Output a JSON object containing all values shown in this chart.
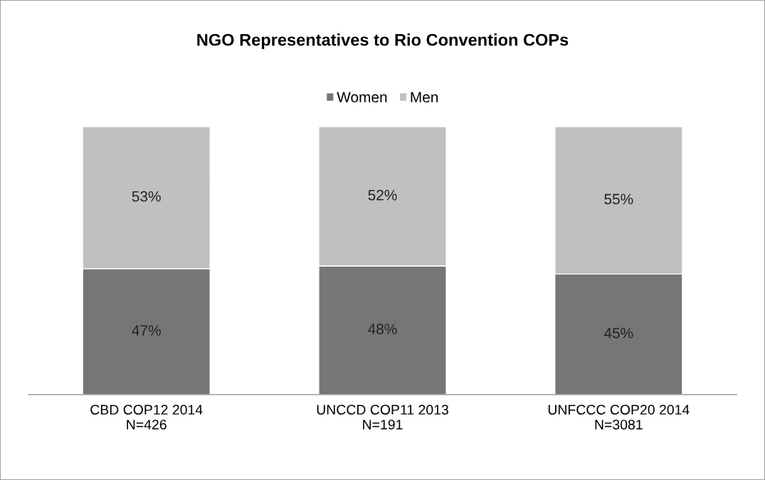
{
  "chart_data": {
    "type": "bar",
    "title": "NGO Representatives to Rio Convention COPs",
    "categories": [
      "CBD COP12 2014\nN=426",
      "UNCCD COP11 2013\nN=191",
      "UNFCCC COP20 2014\nN=3081"
    ],
    "stacked": true,
    "series": [
      {
        "name": "Women",
        "color": "#767676",
        "values": [
          47,
          48,
          45
        ],
        "value_labels": [
          "47%",
          "48%",
          "45%"
        ]
      },
      {
        "name": "Men",
        "color": "#c0c0c0",
        "values": [
          53,
          52,
          55
        ],
        "value_labels": [
          "53%",
          "52%",
          "55%"
        ]
      }
    ],
    "legend": "top",
    "grid": false
  }
}
